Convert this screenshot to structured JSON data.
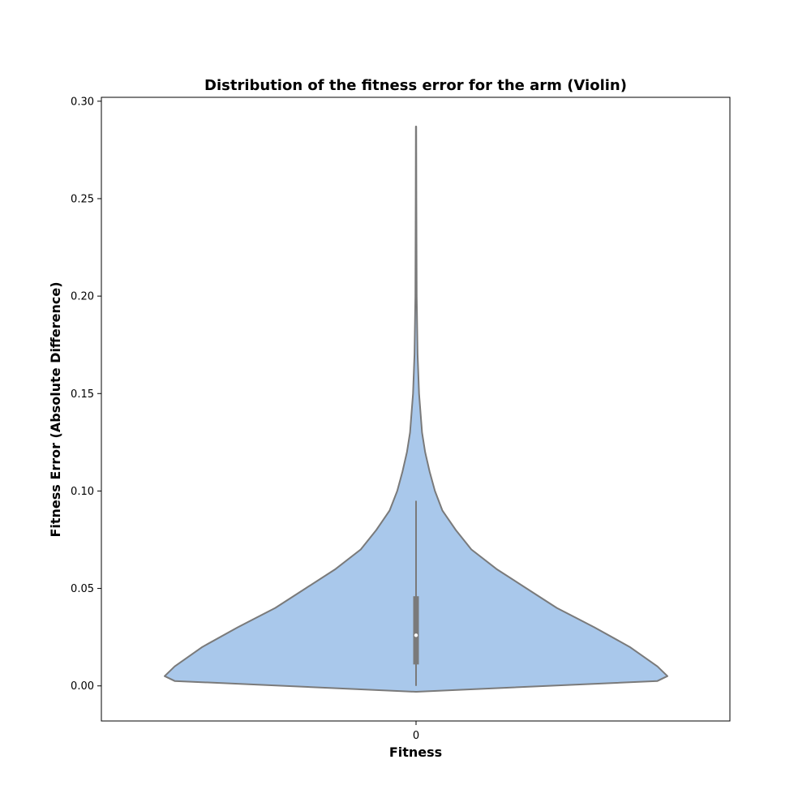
{
  "chart_data": {
    "type": "violin",
    "title": "Distribution of the fitness error for the arm (Violin)",
    "xlabel": "Fitness",
    "ylabel": "Fitness Error (Absolute Difference)",
    "categories": [
      "0"
    ],
    "ylim": [
      -0.018,
      0.302
    ],
    "yticks": [
      0.0,
      0.05,
      0.1,
      0.15,
      0.2,
      0.25,
      0.3
    ],
    "ytick_labels": [
      "0.00",
      "0.05",
      "0.10",
      "0.15",
      "0.20",
      "0.25",
      "0.30"
    ],
    "grid": false,
    "fill_color": "#a9c8eb",
    "line_color": "#7a7a7a",
    "density_profile": {
      "y": [
        -0.003,
        0.0025,
        0.005,
        0.01,
        0.02,
        0.03,
        0.04,
        0.05,
        0.06,
        0.07,
        0.08,
        0.09,
        0.1,
        0.11,
        0.12,
        0.13,
        0.15,
        0.17,
        0.2,
        0.25,
        0.287
      ],
      "relative_width": [
        0.0,
        0.96,
        1.0,
        0.96,
        0.85,
        0.71,
        0.56,
        0.44,
        0.32,
        0.22,
        0.158,
        0.105,
        0.075,
        0.054,
        0.036,
        0.024,
        0.012,
        0.006,
        0.0026,
        0.0013,
        0.0008
      ]
    },
    "box": {
      "min": 0.0,
      "q1": 0.011,
      "median": 0.026,
      "q3": 0.046,
      "max": 0.095
    }
  }
}
